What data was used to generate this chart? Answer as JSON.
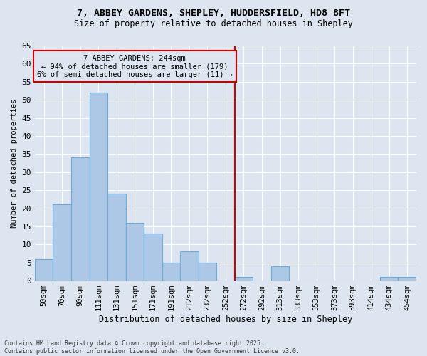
{
  "title1": "7, ABBEY GARDENS, SHEPLEY, HUDDERSFIELD, HD8 8FT",
  "title2": "Size of property relative to detached houses in Shepley",
  "xlabel": "Distribution of detached houses by size in Shepley",
  "ylabel": "Number of detached properties",
  "categories": [
    "50sqm",
    "70sqm",
    "90sqm",
    "111sqm",
    "131sqm",
    "151sqm",
    "171sqm",
    "191sqm",
    "212sqm",
    "232sqm",
    "252sqm",
    "272sqm",
    "292sqm",
    "313sqm",
    "333sqm",
    "353sqm",
    "373sqm",
    "393sqm",
    "414sqm",
    "434sqm",
    "454sqm"
  ],
  "values": [
    6,
    21,
    34,
    52,
    24,
    16,
    13,
    5,
    8,
    5,
    0,
    1,
    0,
    4,
    0,
    0,
    0,
    0,
    0,
    1,
    1
  ],
  "bar_color": "#adc8e6",
  "bar_edge_color": "#6aaad4",
  "bg_color": "#dde6f0",
  "grid_color": "#ffffff",
  "vline_x_idx": 10,
  "vline_color": "#cc0000",
  "annotation_title": "7 ABBEY GARDENS: 244sqm",
  "annotation_line1": "← 94% of detached houses are smaller (179)",
  "annotation_line2": "6% of semi-detached houses are larger (11) →",
  "box_color": "#cc0000",
  "ylim": [
    0,
    65
  ],
  "yticks": [
    0,
    5,
    10,
    15,
    20,
    25,
    30,
    35,
    40,
    45,
    50,
    55,
    60,
    65
  ],
  "footer1": "Contains HM Land Registry data © Crown copyright and database right 2025.",
  "footer2": "Contains public sector information licensed under the Open Government Licence v3.0."
}
